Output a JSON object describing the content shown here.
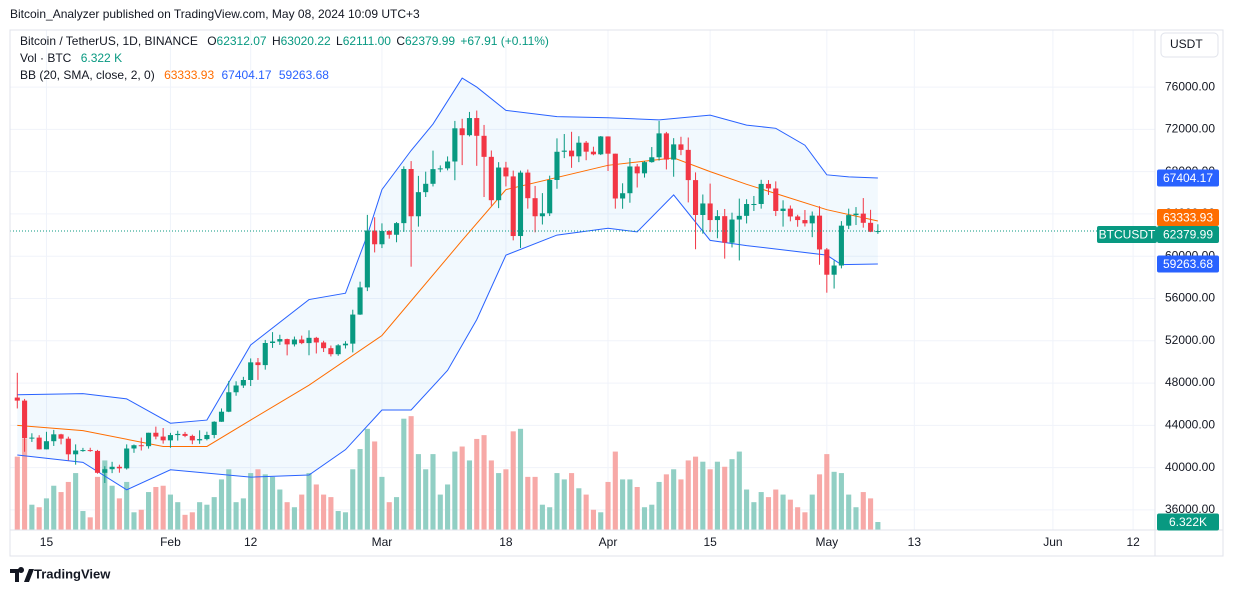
{
  "header": {
    "publisher": "Bitcoin_Analyzer published on TradingView.com, May 08, 2024 10:09 UTC+3"
  },
  "footer": {
    "brand": "TradingView"
  },
  "chart_data": {
    "type": "candlestick",
    "title": "Bitcoin / TetherUS, 1D, BINANCE",
    "symbol": "BTCUSDT",
    "currency": "USDT",
    "ohlc_labels": [
      "O",
      "H",
      "L",
      "C"
    ],
    "last_low_label": "62111.00",
    "change_label": "+67.91 (+0.11%)",
    "up_color": "#089981",
    "down_color": "#f23645",
    "x": [
      "01-11",
      "01-12",
      "01-13",
      "01-14",
      "01-15",
      "01-16",
      "01-17",
      "01-18",
      "01-19",
      "01-20",
      "01-21",
      "01-22",
      "01-23",
      "01-24",
      "01-25",
      "01-26",
      "01-27",
      "01-28",
      "01-29",
      "01-30",
      "01-31",
      "02-01",
      "02-02",
      "02-03",
      "02-04",
      "02-05",
      "02-06",
      "02-07",
      "02-08",
      "02-09",
      "02-10",
      "02-11",
      "02-12",
      "02-13",
      "02-14",
      "02-15",
      "02-16",
      "02-17",
      "02-18",
      "02-19",
      "02-20",
      "02-21",
      "02-22",
      "02-23",
      "02-24",
      "02-25",
      "02-26",
      "02-27",
      "02-28",
      "02-29",
      "03-01",
      "03-02",
      "03-03",
      "03-04",
      "03-05",
      "03-06",
      "03-07",
      "03-08",
      "03-09",
      "03-10",
      "03-11",
      "03-12",
      "03-13",
      "03-14",
      "03-15",
      "03-16",
      "03-17",
      "03-18",
      "03-19",
      "03-20",
      "03-21",
      "03-22",
      "03-23",
      "03-24",
      "03-25",
      "03-26",
      "03-27",
      "03-28",
      "03-29",
      "03-30",
      "03-31",
      "04-01",
      "04-02",
      "04-03",
      "04-04",
      "04-05",
      "04-06",
      "04-07",
      "04-08",
      "04-09",
      "04-10",
      "04-11",
      "04-12",
      "04-13",
      "04-14",
      "04-15",
      "04-16",
      "04-17",
      "04-18",
      "04-19",
      "04-20",
      "04-21",
      "04-22",
      "04-23",
      "04-24",
      "04-25",
      "04-26",
      "04-27",
      "04-28",
      "04-29",
      "04-30",
      "05-01",
      "05-02",
      "05-03",
      "05-04",
      "05-05",
      "05-06",
      "05-07",
      "05-08"
    ],
    "open": [
      46630,
      46340,
      42780,
      42840,
      41730,
      42500,
      43150,
      42740,
      41260,
      41620,
      41660,
      41580,
      39510,
      39850,
      40080,
      39930,
      41810,
      42120,
      42030,
      43300,
      42940,
      42580,
      43080,
      43190,
      43000,
      42580,
      42700,
      43090,
      44340,
      45290,
      47130,
      47770,
      48290,
      49960,
      49700,
      51790,
      51930,
      52160,
      51660,
      52120,
      51780,
      52280,
      51840,
      51300,
      50730,
      51570,
      51730,
      54480,
      57050,
      62430,
      61130,
      62390,
      62030,
      63130,
      68250,
      63780,
      66060,
      66850,
      68240,
      68310,
      68960,
      72100,
      71450,
      73070,
      71390,
      69400,
      65300,
      68390,
      67550,
      61910,
      67910,
      65490,
      63780,
      64060,
      67210,
      69880,
      69990,
      69450,
      70740,
      69890,
      69640,
      71330,
      69700,
      65460,
      65960,
      68490,
      67840,
      68900,
      69360,
      71620,
      69140,
      70580,
      70060,
      67200,
      63900,
      64990,
      63420,
      63790,
      61280,
      63470,
      63820,
      64940,
      64940,
      66840,
      66410,
      64280,
      64500,
      63760,
      63420,
      63110,
      63840,
      60640,
      58250,
      59120,
      62890,
      63890,
      64030,
      63160,
      62312.07
    ],
    "high": [
      48970,
      46500,
      43250,
      43070,
      43390,
      43570,
      43200,
      42930,
      42200,
      41870,
      41880,
      41680,
      40130,
      40550,
      40280,
      42200,
      42190,
      42840,
      43300,
      43880,
      43750,
      43290,
      43490,
      43380,
      43120,
      43530,
      43400,
      44390,
      45600,
      48200,
      48170,
      48590,
      50330,
      50370,
      52080,
      52820,
      52570,
      52200,
      52400,
      52490,
      52990,
      52370,
      52000,
      51550,
      51680,
      51960,
      54940,
      57590,
      63910,
      63680,
      63110,
      62450,
      63230,
      68500,
      69000,
      67600,
      68000,
      69990,
      68590,
      69440,
      72800,
      73000,
      73650,
      73780,
      72420,
      70000,
      68900,
      68930,
      68100,
      68100,
      68200,
      66650,
      65970,
      67620,
      71150,
      71560,
      71770,
      71350,
      70900,
      70360,
      71370,
      71340,
      69700,
      66900,
      69290,
      68720,
      69000,
      70330,
      72800,
      71760,
      71170,
      71300,
      71230,
      67930,
      65840,
      66870,
      64360,
      64470,
      64120,
      65450,
      65390,
      65700,
      67230,
      67200,
      67080,
      65290,
      64800,
      63920,
      64370,
      64230,
      64730,
      60780,
      59600,
      63320,
      64500,
      64650,
      65500,
      64390,
      63020.22
    ],
    "low": [
      45600,
      41500,
      42430,
      41720,
      41720,
      42050,
      42200,
      40680,
      40280,
      41500,
      41500,
      39430,
      38550,
      39480,
      39520,
      39820,
      41400,
      41620,
      41800,
      42680,
      42270,
      41880,
      42560,
      42880,
      42220,
      42250,
      42580,
      42780,
      44330,
      45250,
      46800,
      47540,
      47720,
      48300,
      49270,
      51330,
      51610,
      50620,
      51460,
      51680,
      50630,
      50800,
      50940,
      50520,
      50580,
      51270,
      50900,
      54450,
      56700,
      60360,
      60770,
      61660,
      61320,
      62300,
      59010,
      62800,
      65600,
      66600,
      67950,
      68120,
      67190,
      68620,
      71330,
      68550,
      65600,
      64780,
      64550,
      66600,
      61500,
      60780,
      64500,
      62260,
      63000,
      63800,
      66380,
      69280,
      68360,
      68900,
      69080,
      69550,
      69570,
      68060,
      64500,
      64490,
      65060,
      66500,
      67440,
      68850,
      69040,
      68210,
      67520,
      69560,
      65090,
      60660,
      62130,
      62300,
      61700,
      59770,
      60830,
      59600,
      63100,
      64280,
      64500,
      65800,
      63800,
      62800,
      63300,
      62790,
      62810,
      61800,
      59190,
      56550,
      56940,
      58850,
      62570,
      62950,
      62700,
      62280,
      62111
    ],
    "close": [
      46340,
      42780,
      42840,
      41730,
      42500,
      43150,
      42740,
      41260,
      41620,
      41660,
      41580,
      39510,
      39850,
      40080,
      39930,
      41810,
      42120,
      42030,
      43300,
      42940,
      42580,
      43080,
      43190,
      43000,
      42580,
      42700,
      43090,
      44340,
      45290,
      47130,
      47770,
      48290,
      49960,
      49700,
      51790,
      51930,
      52160,
      51660,
      52120,
      51780,
      52280,
      51840,
      51300,
      50730,
      51570,
      51730,
      54480,
      57050,
      62430,
      61130,
      62390,
      62030,
      63130,
      68250,
      63780,
      66060,
      66850,
      68240,
      68310,
      68960,
      72100,
      71450,
      73070,
      71390,
      69400,
      65300,
      68390,
      67550,
      61910,
      67910,
      65490,
      63780,
      64060,
      67210,
      69880,
      69990,
      69450,
      70740,
      69890,
      69640,
      71330,
      69700,
      65460,
      65960,
      68490,
      67840,
      68900,
      69360,
      71620,
      69140,
      70580,
      70060,
      67200,
      63900,
      64990,
      63420,
      63790,
      61280,
      63470,
      63820,
      64940,
      64940,
      66840,
      66410,
      64280,
      64500,
      63760,
      63420,
      63110,
      63840,
      60640,
      58250,
      59120,
      62890,
      63890,
      64030,
      63160,
      62310,
      62379.99
    ],
    "volume": {
      "name": "Vol · BTC",
      "last_label": "6.322 K",
      "tag_label": "6.322K",
      "up_color": "#91cfc4",
      "down_color": "#f7a9a7",
      "ylim": [
        0,
        395.3
      ],
      "values": [
        58,
        72,
        20,
        18,
        25,
        35,
        30,
        38,
        45,
        15,
        10,
        42,
        55,
        35,
        25,
        38,
        14,
        16,
        30,
        34,
        35,
        28,
        22,
        12,
        14,
        22,
        20,
        26,
        40,
        48,
        22,
        25,
        45,
        48,
        44,
        42,
        32,
        22,
        18,
        28,
        45,
        36,
        28,
        26,
        15,
        14,
        48,
        64,
        80,
        70,
        42,
        22,
        26,
        88,
        90,
        60,
        48,
        60,
        28,
        36,
        62,
        66,
        55,
        72,
        75,
        55,
        45,
        48,
        78,
        80,
        42,
        42,
        20,
        18,
        45,
        40,
        45,
        33,
        28,
        16,
        14,
        38,
        62,
        40,
        40,
        34,
        18,
        20,
        38,
        44,
        48,
        40,
        55,
        58,
        54,
        48,
        54,
        50,
        56,
        62,
        32,
        22,
        30,
        26,
        32,
        28,
        24,
        18,
        14,
        28,
        44,
        60,
        46,
        45,
        28,
        18,
        30,
        25,
        6.322
      ]
    },
    "bands": {
      "name": "BB (20, SMA, close, 2, 0)",
      "fill": "rgba(33,150,243,0.06)",
      "basis": {
        "color": "#ff6d00",
        "x": [
          "01-11",
          "01-20",
          "01-31",
          "02-06",
          "02-12",
          "02-20",
          "03-01",
          "03-12",
          "03-18",
          "04-01",
          "04-10",
          "04-15",
          "04-20",
          "05-01",
          "05-08"
        ],
        "values": [
          44000,
          43500,
          42000,
          42000,
          44500,
          47800,
          52500,
          61500,
          66300,
          68600,
          69300,
          68000,
          66800,
          64400,
          63333.93
        ]
      },
      "upper": {
        "color": "#2962ff",
        "x": [
          "01-11",
          "01-20",
          "01-26",
          "02-01",
          "02-06",
          "02-12",
          "02-20",
          "02-25",
          "02-28",
          "03-01",
          "03-05",
          "03-08",
          "03-12",
          "03-14",
          "03-18",
          "03-25",
          "04-01",
          "04-08",
          "04-15",
          "04-20",
          "04-24",
          "04-28",
          "05-01",
          "05-04",
          "05-08"
        ],
        "values": [
          46900,
          47000,
          46500,
          44200,
          44500,
          51600,
          55900,
          56500,
          62000,
          66300,
          70000,
          72500,
          76850,
          76000,
          73800,
          73200,
          73100,
          72900,
          73350,
          72400,
          72100,
          70500,
          67700,
          67500,
          67404.17
        ]
      },
      "lower": {
        "color": "#2962ff",
        "x": [
          "01-11",
          "01-20",
          "01-26",
          "02-01",
          "02-12",
          "02-20",
          "02-25",
          "03-01",
          "03-05",
          "03-10",
          "03-14",
          "03-18",
          "03-25",
          "04-01",
          "04-05",
          "04-10",
          "04-15",
          "04-20",
          "04-25",
          "05-01",
          "05-03",
          "05-08"
        ],
        "values": [
          41200,
          40500,
          37900,
          39800,
          39100,
          39300,
          41700,
          45450,
          45450,
          49200,
          54000,
          60100,
          62000,
          62650,
          62300,
          65800,
          61500,
          61000,
          60600,
          60100,
          59200,
          59263.68
        ]
      }
    },
    "xlim": [
      "01-10",
      "06-15"
    ],
    "xticks": [
      {
        "value": "01-15",
        "label": "15"
      },
      {
        "value": "02-01",
        "label": "Feb"
      },
      {
        "value": "02-12",
        "label": "12"
      },
      {
        "value": "03-01",
        "label": "Mar"
      },
      {
        "value": "03-18",
        "label": "18"
      },
      {
        "value": "04-01",
        "label": "Apr"
      },
      {
        "value": "04-15",
        "label": "15"
      },
      {
        "value": "05-01",
        "label": "May"
      },
      {
        "value": "05-13",
        "label": "13"
      },
      {
        "value": "06-01",
        "label": "Jun"
      },
      {
        "value": "06-12",
        "label": "12"
      }
    ],
    "ylim": [
      34100,
      81400
    ],
    "yticks": [
      {
        "value": 36000,
        "label": "36000.00"
      },
      {
        "value": 40000,
        "label": "40000.00"
      },
      {
        "value": 44000,
        "label": "44000.00"
      },
      {
        "value": 48000,
        "label": "48000.00"
      },
      {
        "value": 52000,
        "label": "52000.00"
      },
      {
        "value": 56000,
        "label": "56000.00"
      },
      {
        "value": 60000,
        "label": "60000.00"
      },
      {
        "value": 64000,
        "label": "64000.00"
      },
      {
        "value": 68000,
        "label": "68000.00"
      },
      {
        "value": 72000,
        "label": "72000.00"
      },
      {
        "value": 76000,
        "label": "76000.00"
      }
    ],
    "grid": true
  }
}
